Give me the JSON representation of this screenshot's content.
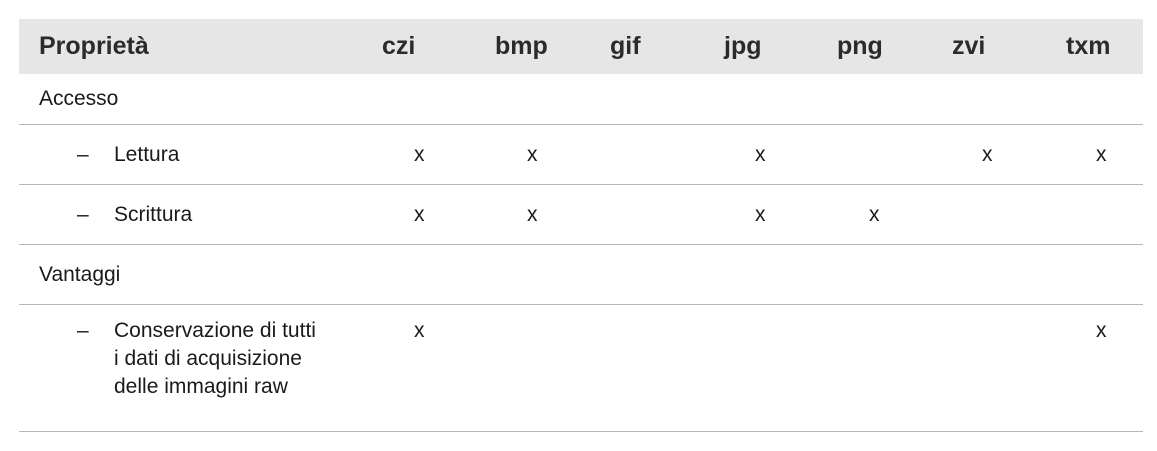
{
  "table": {
    "headers": [
      "Proprietà",
      "czi",
      "bmp",
      "gif",
      "jpg",
      "png",
      "zvi",
      "txm"
    ],
    "dash": "–",
    "mark": "x",
    "sections": [
      {
        "label": "Accesso",
        "rows": [
          {
            "label": "Lettura",
            "marks": [
              "x",
              "x",
              "",
              "x",
              "",
              "x",
              "x"
            ]
          },
          {
            "label": "Scrittura",
            "marks": [
              "x",
              "x",
              "",
              "x",
              "x",
              "",
              ""
            ]
          }
        ]
      },
      {
        "label": "Vantaggi",
        "rows": [
          {
            "label_lines": [
              "Conservazione di tutti",
              "i dati di acquisizione",
              "delle immagini raw"
            ],
            "marks": [
              "x",
              "",
              "",
              "",
              "",
              "",
              "x"
            ]
          }
        ]
      }
    ]
  }
}
